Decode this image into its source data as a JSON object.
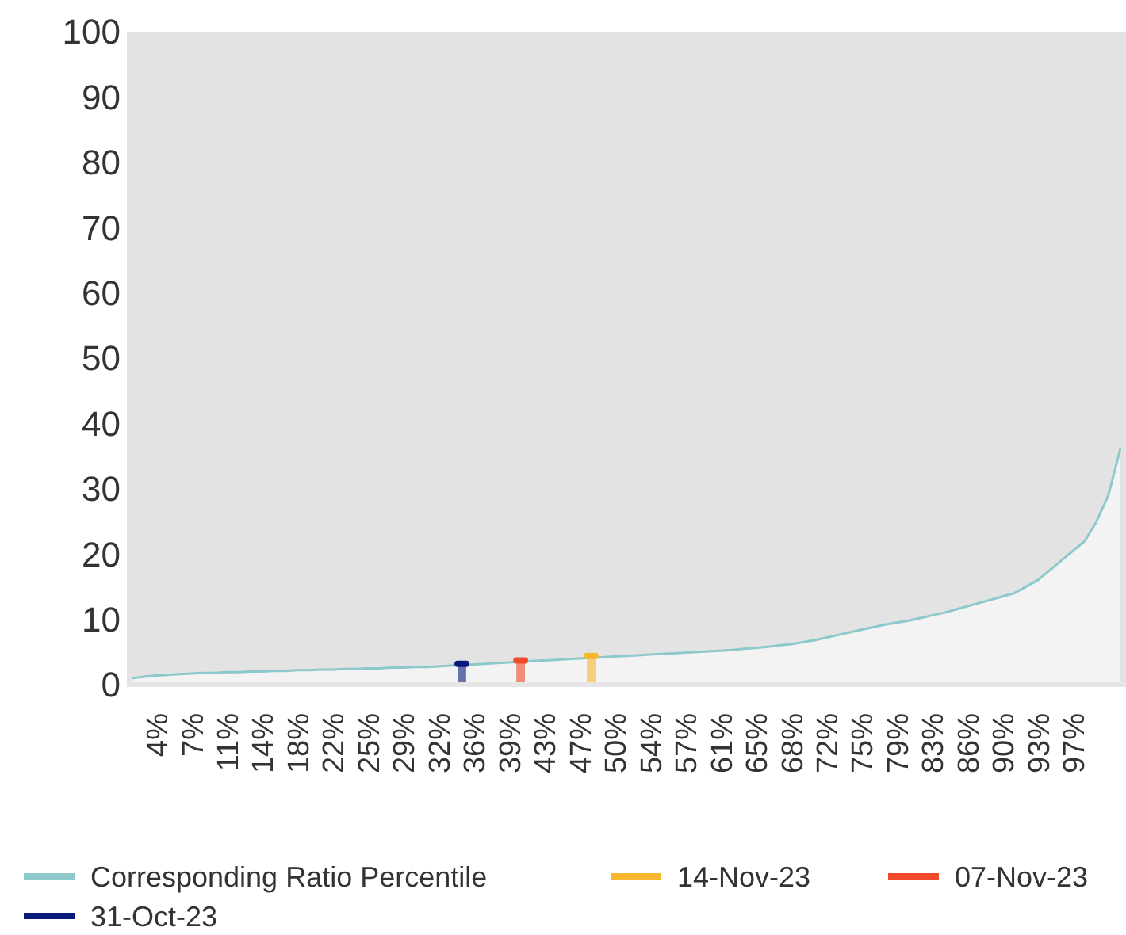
{
  "chart_data": {
    "type": "bar",
    "categories": [
      null,
      null,
      "4%",
      null,
      null,
      "7%",
      null,
      null,
      "11%",
      null,
      null,
      "14%",
      null,
      null,
      "18%",
      null,
      null,
      "22%",
      null,
      null,
      "25%",
      null,
      null,
      "29%",
      null,
      null,
      "32%",
      null,
      null,
      "36%",
      null,
      null,
      "39%",
      null,
      null,
      "43%",
      null,
      null,
      "47%",
      null,
      null,
      "50%",
      null,
      null,
      "54%",
      null,
      null,
      "57%",
      null,
      null,
      "61%",
      null,
      null,
      "65%",
      null,
      null,
      "68%",
      null,
      null,
      "72%",
      null,
      null,
      "75%",
      null,
      null,
      "79%",
      null,
      null,
      "83%",
      null,
      null,
      "86%",
      null,
      null,
      "90%",
      null,
      null,
      "93%",
      null,
      null,
      "97%",
      null,
      null,
      null,
      null
    ],
    "ylim": [
      0,
      100
    ],
    "yticks": [
      0,
      10,
      20,
      30,
      40,
      50,
      60,
      70,
      80,
      90,
      100
    ],
    "grid": false,
    "legend": "bottom",
    "series": [
      {
        "name": "Corresponding Ratio Percentile",
        "type": "area",
        "color": "#8cc8cc",
        "values": [
          1.0,
          1.2,
          1.4,
          1.5,
          1.6,
          1.7,
          1.8,
          1.8,
          1.9,
          1.9,
          2.0,
          2.0,
          2.1,
          2.1,
          2.2,
          2.2,
          2.3,
          2.3,
          2.4,
          2.4,
          2.5,
          2.5,
          2.6,
          2.6,
          2.7,
          2.7,
          2.8,
          2.9,
          3.0,
          3.1,
          3.2,
          3.3,
          3.4,
          3.5,
          3.6,
          3.7,
          3.8,
          3.9,
          4.0,
          4.1,
          4.2,
          4.3,
          4.4,
          4.5,
          4.6,
          4.7,
          4.8,
          4.9,
          5.0,
          5.1,
          5.2,
          5.3,
          5.5,
          5.6,
          5.8,
          6.0,
          6.2,
          6.5,
          6.8,
          7.2,
          7.6,
          8.0,
          8.4,
          8.8,
          9.2,
          9.5,
          9.8,
          10.2,
          10.6,
          11.0,
          11.5,
          12.0,
          12.5,
          13.0,
          13.5,
          14.0,
          15.0,
          16.0,
          17.5,
          19.0,
          20.5,
          22.0,
          25.0,
          29.0,
          36.0
        ]
      },
      {
        "name": "14-Nov-23",
        "color": "#f5b82e",
        "values": [
          null,
          null,
          null,
          null,
          null,
          null,
          null,
          null,
          null,
          null,
          null,
          null,
          null,
          null,
          null,
          null,
          null,
          null,
          null,
          null,
          null,
          null,
          null,
          null,
          null,
          null,
          null,
          null,
          null,
          null,
          null,
          null,
          null,
          null,
          null,
          null,
          null,
          null,
          null,
          4.4,
          null,
          null,
          null,
          null,
          null,
          null,
          null,
          null,
          null,
          null,
          null,
          null,
          null,
          null,
          null,
          null,
          null,
          null,
          null,
          null,
          null,
          null,
          null,
          null,
          null,
          null,
          null,
          null,
          null,
          null,
          null,
          null,
          null,
          null,
          null,
          null,
          null,
          null,
          null,
          null,
          null,
          null,
          null,
          null,
          null
        ]
      },
      {
        "name": "07-Nov-23",
        "color": "#f04a2a",
        "values": [
          null,
          null,
          null,
          null,
          null,
          null,
          null,
          null,
          null,
          null,
          null,
          null,
          null,
          null,
          null,
          null,
          null,
          null,
          null,
          null,
          null,
          null,
          null,
          null,
          null,
          null,
          null,
          null,
          null,
          null,
          null,
          null,
          null,
          3.7,
          null,
          null,
          null,
          null,
          null,
          null,
          null,
          null,
          null,
          null,
          null,
          null,
          null,
          null,
          null,
          null,
          null,
          null,
          null,
          null,
          null,
          null,
          null,
          null,
          null,
          null,
          null,
          null,
          null,
          null,
          null,
          null,
          null,
          null,
          null,
          null,
          null,
          null,
          null,
          null,
          null,
          null,
          null,
          null,
          null,
          null,
          null,
          null,
          null,
          null,
          null
        ]
      },
      {
        "name": "31-Oct-23",
        "color": "#0a1a7a",
        "values": [
          null,
          null,
          null,
          null,
          null,
          null,
          null,
          null,
          null,
          null,
          null,
          null,
          null,
          null,
          null,
          null,
          null,
          null,
          null,
          null,
          null,
          null,
          null,
          null,
          null,
          null,
          null,
          null,
          3.2,
          null,
          null,
          null,
          null,
          null,
          null,
          null,
          null,
          null,
          null,
          null,
          null,
          null,
          null,
          null,
          null,
          null,
          null,
          null,
          null,
          null,
          null,
          null,
          null,
          null,
          null,
          null,
          null,
          null,
          null,
          null,
          null,
          null,
          null,
          null,
          null,
          null,
          null,
          null,
          null,
          null,
          null,
          null,
          null,
          null,
          null,
          null,
          null,
          null,
          null,
          null,
          null,
          null,
          null,
          null,
          null
        ]
      }
    ]
  }
}
